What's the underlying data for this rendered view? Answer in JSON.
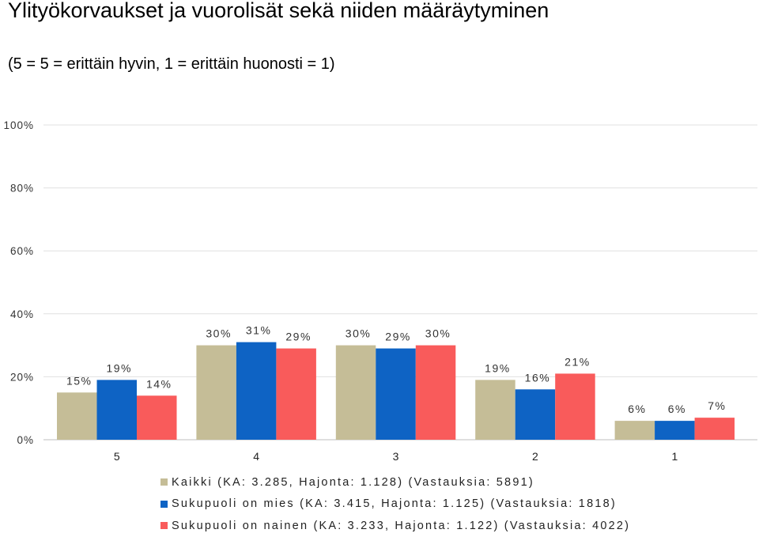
{
  "title": "Ylityökorvaukset ja vuorolisät sekä niiden määräytyminen",
  "subtitle": "(5 = 5 = erittäin hyvin, 1 = erittäin huonosti = 1)",
  "chart_data": {
    "type": "bar",
    "categories": [
      "5",
      "4",
      "3",
      "2",
      "1"
    ],
    "series": [
      {
        "name": "Kaikki (KA: 3.285, Hajonta: 1.128) (Vastauksia: 5891)",
        "values": [
          15,
          30,
          30,
          19,
          6
        ],
        "color": "#c5bd97"
      },
      {
        "name": "Sukupuoli on mies (KA: 3.415, Hajonta: 1.125) (Vastauksia: 1818)",
        "values": [
          19,
          31,
          29,
          16,
          6
        ],
        "color": "#0e63c4"
      },
      {
        "name": "Sukupuoli on nainen (KA: 3.233, Hajonta: 1.122) (Vastauksia: 4022)",
        "values": [
          14,
          29,
          30,
          21,
          7
        ],
        "color": "#f95b5b"
      }
    ],
    "y_ticks": [
      "0%",
      "20%",
      "40%",
      "60%",
      "80%",
      "100%"
    ],
    "ylim": [
      0,
      100
    ],
    "grid": true,
    "legend_position": "bottom",
    "value_suffix": "%"
  }
}
